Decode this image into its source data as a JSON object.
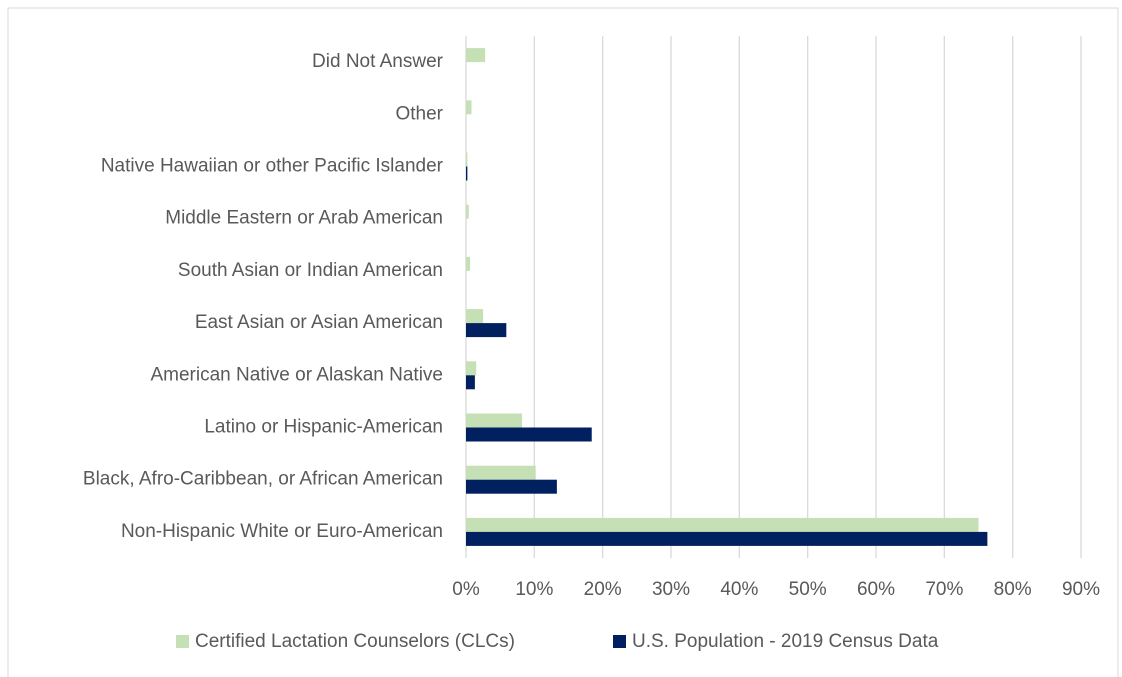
{
  "chart_data": {
    "type": "hbar",
    "categories": [
      "Did Not Answer",
      "Other",
      "Native Hawaiian or other Pacific Islander",
      "Middle Eastern or Arab American",
      "South Asian or Indian American",
      "East Asian or Asian American",
      "American Native or Alaskan Native",
      "Latino or Hispanic-American",
      "Black, Afro-Caribbean, or African American",
      "Non-Hispanic White or Euro-American"
    ],
    "series": [
      {
        "name": "Certified Lactation Counselors (CLCs)",
        "color": "#c5e0b4",
        "values": [
          2.8,
          0.8,
          0.2,
          0.4,
          0.6,
          2.5,
          1.5,
          8.2,
          10.2,
          75
        ]
      },
      {
        "name": "U.S. Population - 2019 Census Data",
        "color": "#002060",
        "values": [
          0,
          0,
          0.2,
          0,
          0,
          5.9,
          1.3,
          18.4,
          13.3,
          76.3
        ]
      }
    ],
    "xlim": [
      0,
      90
    ],
    "xticks": [
      {
        "value": 0,
        "label": "0%"
      },
      {
        "value": 10,
        "label": "10%"
      },
      {
        "value": 20,
        "label": "20%"
      },
      {
        "value": 30,
        "label": "30%"
      },
      {
        "value": 40,
        "label": "40%"
      },
      {
        "value": 50,
        "label": "50%"
      },
      {
        "value": 60,
        "label": "60%"
      },
      {
        "value": 70,
        "label": "70%"
      },
      {
        "value": 80,
        "label": "80%"
      },
      {
        "value": 90,
        "label": "90%"
      }
    ],
    "grid": true,
    "legend": "bottom"
  }
}
